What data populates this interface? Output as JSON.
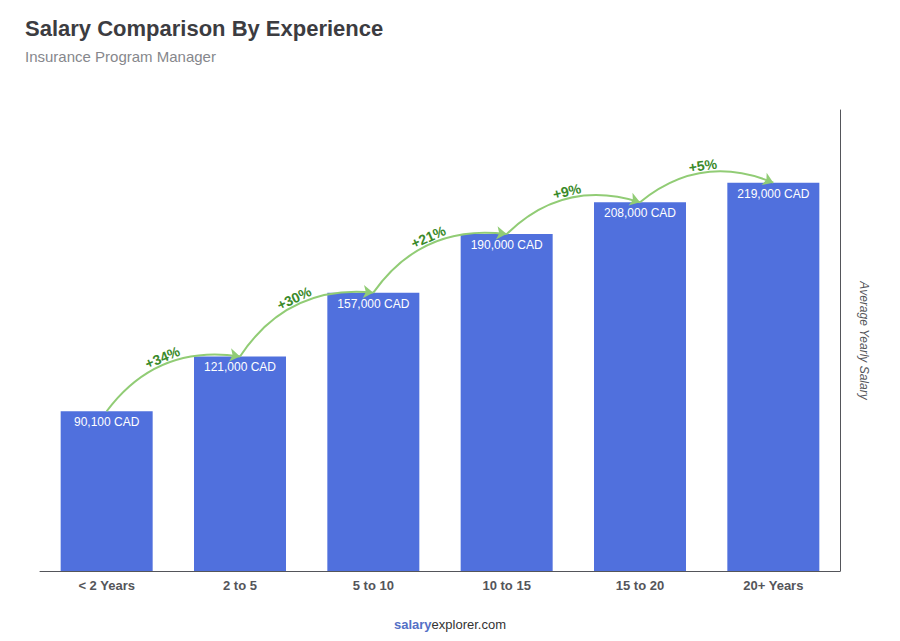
{
  "chart_data": {
    "type": "bar",
    "title": "Salary Comparison By Experience",
    "subtitle": "Insurance Program Manager",
    "categories": [
      "< 2 Years",
      "2 to 5",
      "5 to 10",
      "10 to 15",
      "15 to 20",
      "20+ Years"
    ],
    "values": [
      90100,
      121000,
      157000,
      190000,
      208000,
      219000
    ],
    "value_labels": [
      "90,100 CAD",
      "121,000 CAD",
      "157,000 CAD",
      "190,000 CAD",
      "208,000 CAD",
      "219,000 CAD"
    ],
    "data_labels": true,
    "annotations": [
      "+34%",
      "+30%",
      "+21%",
      "+9%",
      "+5%"
    ],
    "ylabel": "Average Yearly Salary",
    "ylim": [
      0,
      260000
    ],
    "grid": false,
    "tick_labels": "x",
    "footer": [
      "salary",
      "explorer.com"
    ]
  }
}
